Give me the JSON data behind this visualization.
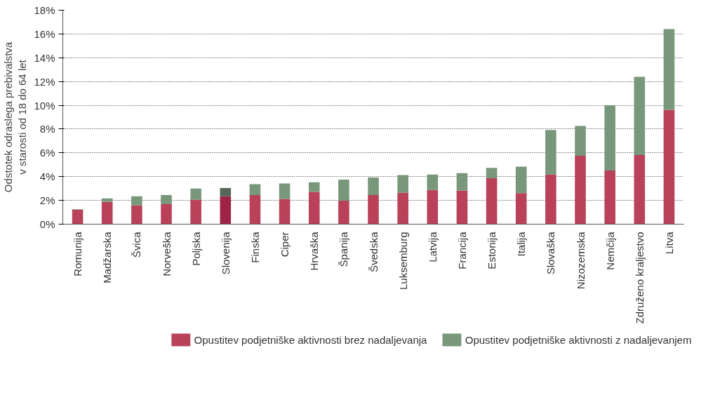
{
  "chart_data": {
    "type": "bar",
    "stacked": true,
    "ylabel": "Odstotek odraslega prebivalstva v starosti od 18 do 64 let",
    "categories": [
      "Romunija",
      "Madžarska",
      "Švica",
      "Norveška",
      "Poljska",
      "Slovenija",
      "Finska",
      "Ciper",
      "Hrvaška",
      "Španija",
      "Švedska",
      "Luksemburg",
      "Latvija",
      "Francija",
      "Estonija",
      "Italija",
      "Slovaška",
      "Nizozemska",
      "Nemčija",
      "Združeno kraljestvo",
      "Litva"
    ],
    "series": [
      {
        "name": "Opustitev podjetniške aktivnosti brez nadaljevanja",
        "color": "#b9425a",
        "colors": [
          "#b9425a",
          "#b9425a",
          "#b9425a",
          "#b9425a",
          "#b9425a",
          "#9e2447",
          "#b9425a",
          "#b9425a",
          "#b9425a",
          "#b9425a",
          "#b9425a",
          "#b9425a",
          "#b9425a",
          "#b9425a",
          "#b9425a",
          "#b9425a",
          "#b9425a",
          "#b9425a",
          "#b9425a",
          "#b9425a",
          "#b9425a"
        ],
        "values": [
          1.21,
          1.87,
          1.58,
          1.68,
          2.07,
          2.34,
          2.45,
          2.12,
          2.72,
          1.97,
          2.45,
          2.66,
          2.88,
          2.83,
          3.86,
          2.61,
          4.18,
          5.76,
          4.51,
          5.82,
          9.62
        ]
      },
      {
        "name": "Opustitev podjetniške aktivnosti z nadaljevanjem",
        "color": "#78977b",
        "colors": [
          "#78977b",
          "#78977b",
          "#78977b",
          "#78977b",
          "#78977b",
          "#566757",
          "#78977b",
          "#78977b",
          "#78977b",
          "#78977b",
          "#78977b",
          "#78977b",
          "#78977b",
          "#78977b",
          "#78977b",
          "#78977b",
          "#78977b",
          "#78977b",
          "#78977b",
          "#78977b",
          "#78977b"
        ],
        "values": [
          0.04,
          0.3,
          0.76,
          0.77,
          0.92,
          0.7,
          0.92,
          1.3,
          0.81,
          1.78,
          1.48,
          1.47,
          1.3,
          1.46,
          0.87,
          2.23,
          3.75,
          2.5,
          5.49,
          6.57,
          6.79
        ]
      }
    ],
    "ylim": [
      0,
      18
    ],
    "yticks": [
      {
        "value": 0,
        "label": "0%"
      },
      {
        "value": 2,
        "label": "2%"
      },
      {
        "value": 4,
        "label": "4%"
      },
      {
        "value": 6,
        "label": "6%"
      },
      {
        "value": 8,
        "label": "8%"
      },
      {
        "value": 10,
        "label": "10%"
      },
      {
        "value": 12,
        "label": "12%"
      },
      {
        "value": 14,
        "label": "14%"
      },
      {
        "value": 16,
        "label": "16%"
      },
      {
        "value": 18,
        "label": "18%"
      }
    ],
    "grid": "y",
    "legend": "bottom"
  }
}
